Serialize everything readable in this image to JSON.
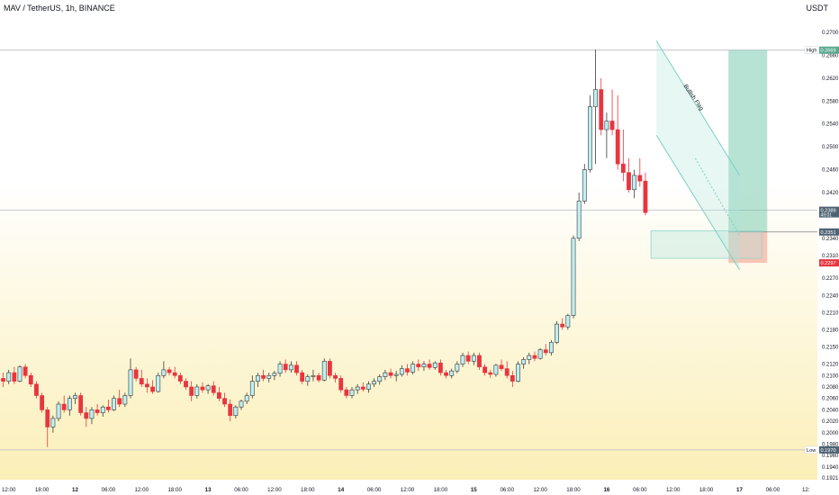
{
  "header": {
    "symbol_title": "MAV / TetherUS, 1h, BINANCE",
    "currency": "USDT"
  },
  "colors": {
    "up": "#bfeff2",
    "up_border": "#3a3a3a",
    "down": "#e8353f",
    "target_zone": "#5fc1a2",
    "stop_zone": "#f4a08f",
    "pattern": "#aee3dc",
    "background_top": "#ffffff",
    "background_bottom": "#fbefb8",
    "gridline": "#dadde3"
  },
  "chart_data": {
    "type": "candlestick",
    "ylim": [
      0.1921,
      0.27
    ],
    "y_ticks": [
      0.27,
      0.266,
      0.262,
      0.258,
      0.254,
      0.25,
      0.246,
      0.242,
      0.238,
      0.234,
      0.231,
      0.227,
      0.224,
      0.221,
      0.218,
      0.215,
      0.212,
      0.21,
      0.208,
      0.206,
      0.204,
      0.202,
      0.2,
      0.198,
      0.197,
      0.196,
      0.194,
      0.1921
    ],
    "x_ticks": [
      {
        "label": "12:00",
        "index": -2
      },
      {
        "label": "18:00",
        "index": 4
      },
      {
        "label": "12",
        "index": 10
      },
      {
        "label": "06:00",
        "index": 16
      },
      {
        "label": "12:00",
        "index": 22
      },
      {
        "label": "18:00",
        "index": 28
      },
      {
        "label": "13",
        "index": 34
      },
      {
        "label": "06:00",
        "index": 40
      },
      {
        "label": "12:00",
        "index": 46
      },
      {
        "label": "18:00",
        "index": 52
      },
      {
        "label": "14",
        "index": 58
      },
      {
        "label": "06:00",
        "index": 64
      },
      {
        "label": "12:00",
        "index": 70
      },
      {
        "label": "18:00",
        "index": 76
      },
      {
        "label": "15",
        "index": 82
      },
      {
        "label": "06:00",
        "index": 88
      },
      {
        "label": "12:00",
        "index": 94
      },
      {
        "label": "18:00",
        "index": 100
      },
      {
        "label": "16",
        "index": 106
      },
      {
        "label": "06:00",
        "index": 112
      },
      {
        "label": "12:00",
        "index": 118
      },
      {
        "label": "18:00",
        "index": 124
      },
      {
        "label": "17",
        "index": 130
      },
      {
        "label": "06:00",
        "index": 136
      },
      {
        "label": "12:",
        "index": 142
      }
    ],
    "candles": [
      [
        0.21,
        0.211,
        0.2085,
        0.2095
      ],
      [
        0.2095,
        0.2105,
        0.208,
        0.209
      ],
      [
        0.209,
        0.211,
        0.2085,
        0.2105
      ],
      [
        0.2105,
        0.2115,
        0.2085,
        0.209
      ],
      [
        0.209,
        0.2118,
        0.2088,
        0.2115
      ],
      [
        0.2115,
        0.212,
        0.2095,
        0.21
      ],
      [
        0.21,
        0.2105,
        0.208,
        0.2085
      ],
      [
        0.2085,
        0.209,
        0.206,
        0.2065
      ],
      [
        0.2065,
        0.207,
        0.2035,
        0.204
      ],
      [
        0.204,
        0.2045,
        0.1975,
        0.201
      ],
      [
        0.201,
        0.203,
        0.2,
        0.2025
      ],
      [
        0.2025,
        0.2055,
        0.202,
        0.205
      ],
      [
        0.205,
        0.2065,
        0.2035,
        0.204
      ],
      [
        0.204,
        0.2065,
        0.203,
        0.206
      ],
      [
        0.206,
        0.207,
        0.205,
        0.2065
      ],
      [
        0.2065,
        0.207,
        0.203,
        0.2035
      ],
      [
        0.2035,
        0.2045,
        0.201,
        0.2025
      ],
      [
        0.2025,
        0.2045,
        0.2015,
        0.204
      ],
      [
        0.204,
        0.205,
        0.203,
        0.2035
      ],
      [
        0.2035,
        0.2048,
        0.2028,
        0.2045
      ],
      [
        0.2045,
        0.2058,
        0.2035,
        0.204
      ],
      [
        0.204,
        0.2065,
        0.2038,
        0.206
      ],
      [
        0.206,
        0.2075,
        0.2045,
        0.205
      ],
      [
        0.205,
        0.207,
        0.2045,
        0.2065
      ],
      [
        0.2065,
        0.213,
        0.206,
        0.211
      ],
      [
        0.211,
        0.2115,
        0.209,
        0.2095
      ],
      [
        0.2095,
        0.211,
        0.208,
        0.2085
      ],
      [
        0.2085,
        0.2095,
        0.207,
        0.208
      ],
      [
        0.208,
        0.2092,
        0.2068,
        0.2072
      ],
      [
        0.2072,
        0.2105,
        0.207,
        0.21
      ],
      [
        0.21,
        0.2125,
        0.2095,
        0.211
      ],
      [
        0.211,
        0.2115,
        0.21,
        0.2105
      ],
      [
        0.2105,
        0.2115,
        0.2095,
        0.21
      ],
      [
        0.21,
        0.2105,
        0.2085,
        0.209
      ],
      [
        0.209,
        0.2095,
        0.2075,
        0.208
      ],
      [
        0.208,
        0.209,
        0.2055,
        0.2065
      ],
      [
        0.2065,
        0.2085,
        0.206,
        0.208
      ],
      [
        0.208,
        0.2088,
        0.207,
        0.2075
      ],
      [
        0.2075,
        0.2085,
        0.2068,
        0.2082
      ],
      [
        0.2082,
        0.209,
        0.2065,
        0.207
      ],
      [
        0.207,
        0.208,
        0.2055,
        0.206
      ],
      [
        0.206,
        0.207,
        0.2045,
        0.205
      ],
      [
        0.205,
        0.2058,
        0.202,
        0.203
      ],
      [
        0.203,
        0.2048,
        0.2025,
        0.2045
      ],
      [
        0.2045,
        0.2058,
        0.204,
        0.2055
      ],
      [
        0.2055,
        0.207,
        0.205,
        0.2065
      ],
      [
        0.2065,
        0.21,
        0.206,
        0.209
      ],
      [
        0.209,
        0.2105,
        0.208,
        0.21
      ],
      [
        0.21,
        0.211,
        0.209,
        0.2095
      ],
      [
        0.2095,
        0.2105,
        0.2088,
        0.21
      ],
      [
        0.21,
        0.2108,
        0.2092,
        0.2104
      ],
      [
        0.2104,
        0.2125,
        0.2098,
        0.212
      ],
      [
        0.212,
        0.2128,
        0.2105,
        0.211
      ],
      [
        0.211,
        0.2125,
        0.2105,
        0.2118
      ],
      [
        0.2118,
        0.2125,
        0.21,
        0.2105
      ],
      [
        0.2105,
        0.211,
        0.2085,
        0.209
      ],
      [
        0.209,
        0.2102,
        0.2082,
        0.2098
      ],
      [
        0.2098,
        0.211,
        0.209,
        0.21
      ],
      [
        0.21,
        0.2105,
        0.2088,
        0.2092
      ],
      [
        0.2092,
        0.213,
        0.209,
        0.2125
      ],
      [
        0.2125,
        0.213,
        0.2095,
        0.21
      ],
      [
        0.21,
        0.2105,
        0.2088,
        0.2095
      ],
      [
        0.2095,
        0.21,
        0.207,
        0.2075
      ],
      [
        0.2075,
        0.208,
        0.206,
        0.2065
      ],
      [
        0.2065,
        0.208,
        0.206,
        0.2075
      ],
      [
        0.2075,
        0.2085,
        0.2068,
        0.208
      ],
      [
        0.208,
        0.2088,
        0.2072,
        0.2076
      ],
      [
        0.2076,
        0.209,
        0.207,
        0.2085
      ],
      [
        0.2085,
        0.2095,
        0.208,
        0.209
      ],
      [
        0.209,
        0.2102,
        0.2084,
        0.2098
      ],
      [
        0.2098,
        0.211,
        0.2092,
        0.2105
      ],
      [
        0.2105,
        0.2112,
        0.2095,
        0.21
      ],
      [
        0.21,
        0.2108,
        0.209,
        0.2102
      ],
      [
        0.2102,
        0.2118,
        0.2098,
        0.2112
      ],
      [
        0.2112,
        0.212,
        0.21,
        0.2106
      ],
      [
        0.2106,
        0.2125,
        0.2102,
        0.212
      ],
      [
        0.212,
        0.2128,
        0.2108,
        0.2115
      ],
      [
        0.2115,
        0.2125,
        0.2108,
        0.212
      ],
      [
        0.212,
        0.2128,
        0.211,
        0.2114
      ],
      [
        0.2114,
        0.2125,
        0.211,
        0.2122
      ],
      [
        0.2122,
        0.2128,
        0.21,
        0.2105
      ],
      [
        0.2105,
        0.211,
        0.2095,
        0.21
      ],
      [
        0.21,
        0.2112,
        0.2095,
        0.2108
      ],
      [
        0.2108,
        0.2125,
        0.2104,
        0.212
      ],
      [
        0.212,
        0.214,
        0.2115,
        0.2135
      ],
      [
        0.2135,
        0.2142,
        0.212,
        0.2125
      ],
      [
        0.2125,
        0.214,
        0.2118,
        0.2135
      ],
      [
        0.2135,
        0.214,
        0.211,
        0.2115
      ],
      [
        0.2115,
        0.212,
        0.21,
        0.2105
      ],
      [
        0.2105,
        0.211,
        0.2096,
        0.2102
      ],
      [
        0.2102,
        0.212,
        0.2098,
        0.2118
      ],
      [
        0.2118,
        0.2128,
        0.2108,
        0.2112
      ],
      [
        0.2112,
        0.2125,
        0.2095,
        0.21
      ],
      [
        0.21,
        0.2108,
        0.208,
        0.209
      ],
      [
        0.209,
        0.2125,
        0.2088,
        0.212
      ],
      [
        0.212,
        0.2132,
        0.2112,
        0.2128
      ],
      [
        0.2128,
        0.214,
        0.212,
        0.2135
      ],
      [
        0.2135,
        0.2142,
        0.2125,
        0.213
      ],
      [
        0.213,
        0.2148,
        0.2128,
        0.2145
      ],
      [
        0.2145,
        0.2155,
        0.2135,
        0.214
      ],
      [
        0.214,
        0.2162,
        0.2135,
        0.2158
      ],
      [
        0.2158,
        0.2195,
        0.2155,
        0.219
      ],
      [
        0.219,
        0.22,
        0.218,
        0.2185
      ],
      [
        0.2185,
        0.2208,
        0.218,
        0.2205
      ],
      [
        0.2205,
        0.2345,
        0.22,
        0.234
      ],
      [
        0.234,
        0.242,
        0.2335,
        0.2405
      ],
      [
        0.2405,
        0.247,
        0.24,
        0.246
      ],
      [
        0.246,
        0.259,
        0.2455,
        0.257
      ],
      [
        0.257,
        0.267,
        0.247,
        0.26
      ],
      [
        0.26,
        0.262,
        0.252,
        0.253
      ],
      [
        0.253,
        0.256,
        0.248,
        0.2545
      ],
      [
        0.2545,
        0.26,
        0.252,
        0.253
      ],
      [
        0.253,
        0.259,
        0.246,
        0.247
      ],
      [
        0.247,
        0.253,
        0.244,
        0.2455
      ],
      [
        0.2455,
        0.248,
        0.242,
        0.2425
      ],
      [
        0.2425,
        0.246,
        0.241,
        0.245
      ],
      [
        0.245,
        0.248,
        0.243,
        0.244
      ],
      [
        0.244,
        0.2455,
        0.238,
        0.2385
      ]
    ],
    "first_candle_index": -4,
    "levels": [
      {
        "name": "high",
        "label": "High",
        "value": 0.2669,
        "value_label": "0.2669"
      },
      {
        "name": "current",
        "value": 0.2389,
        "value_label": "0.2389",
        "sub_label": "49:01"
      },
      {
        "name": "entry",
        "value": 0.2351,
        "value_label": "0.2351"
      },
      {
        "name": "stop",
        "value": 0.2297,
        "value_label": "0.2297"
      },
      {
        "name": "low",
        "label": "Low",
        "value": 0.197,
        "value_label": "0.1970"
      }
    ],
    "pattern": {
      "label": "Bullish Flag",
      "upper_line": [
        [
          115,
          0.2685
        ],
        [
          130,
          0.245
        ]
      ],
      "lower_line": [
        [
          115,
          0.252
        ],
        [
          130,
          0.2285
        ]
      ],
      "projection": [
        [
          122,
          0.248
        ],
        [
          130,
          0.2345
        ]
      ]
    },
    "flag_box": {
      "x0": 114,
      "x1": 134,
      "y0": 0.2305,
      "y1": 0.2353
    },
    "position": {
      "x0": 128,
      "x1": 135,
      "target": 0.2669,
      "entry": 0.2351,
      "stop": 0.2297
    }
  }
}
